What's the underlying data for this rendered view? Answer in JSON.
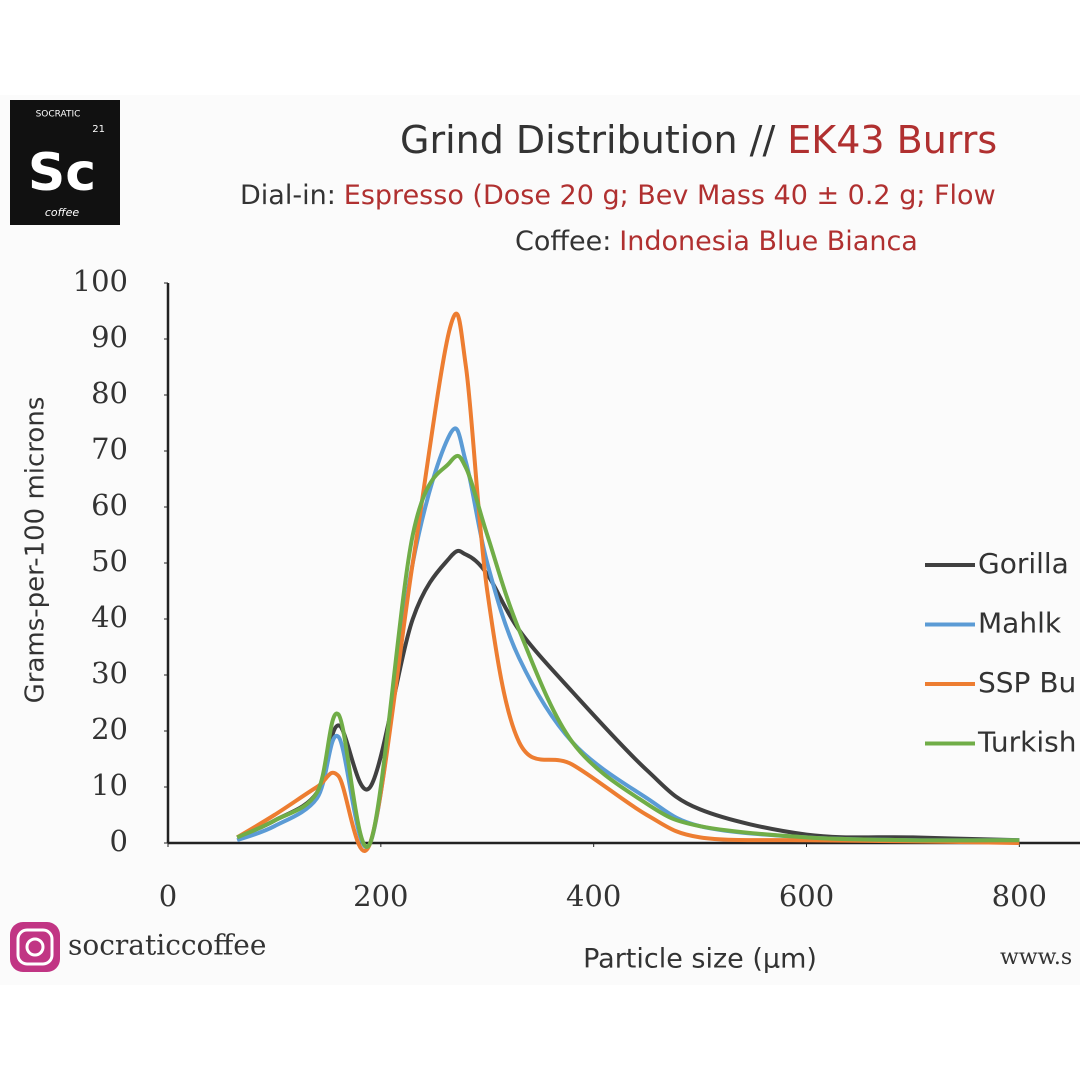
{
  "chart_data": {
    "type": "line",
    "title": "Grind Distribution //",
    "title_highlight": "EK43 Burrs",
    "subtitle_label": "Dial-in:",
    "subtitle": "Espresso (Dose 20 g; Bev Mass 40 ± 0.2 g; Flow",
    "coffee_label": "Coffee:",
    "coffee": "Indonesia Blue Bianca",
    "logo": {
      "top": "SOCRATIC",
      "number": "21",
      "symbol": "Sc",
      "bottom": "coffee"
    },
    "instagram": "socraticcoffee",
    "website": "www.s",
    "x_label": "Particle size (µm)",
    "y_label": "Grams-per-100 microns",
    "x": [
      65,
      100,
      140,
      160,
      190,
      230,
      265,
      280,
      300,
      330,
      380,
      450,
      500,
      600,
      700,
      800
    ],
    "series": [
      {
        "name": "Gorilla",
        "color": "#404040",
        "values": [
          1,
          4,
          9,
          21,
          10,
          40,
          51,
          51.5,
          48,
          38,
          27,
          13,
          6,
          1.5,
          1,
          0.5
        ]
      },
      {
        "name": "Mahlk",
        "color": "#5b9bd5",
        "values": [
          0.5,
          3,
          8,
          19,
          0,
          50,
          73,
          68,
          50,
          33,
          18,
          8,
          3,
          1,
          0.5,
          0.5
        ]
      },
      {
        "name": "SSP Bu",
        "color": "#ed7d31",
        "values": [
          1,
          5,
          10,
          12,
          0,
          50,
          92,
          85,
          45,
          18,
          14,
          5,
          1,
          0.5,
          0.3,
          0
        ]
      },
      {
        "name": "Turkish",
        "color": "#70ad47",
        "values": [
          1,
          4,
          9,
          23,
          0,
          55,
          68,
          67,
          55,
          38,
          18,
          7,
          3,
          1,
          0.5,
          0.5
        ]
      }
    ],
    "xlim": [
      0,
      857
    ],
    "xticks": [
      0,
      200,
      400,
      600,
      800
    ],
    "ylim": [
      0,
      100
    ],
    "yticks": [
      0,
      10,
      20,
      30,
      40,
      50,
      60,
      70,
      80,
      90,
      100
    ],
    "grid": false
  }
}
